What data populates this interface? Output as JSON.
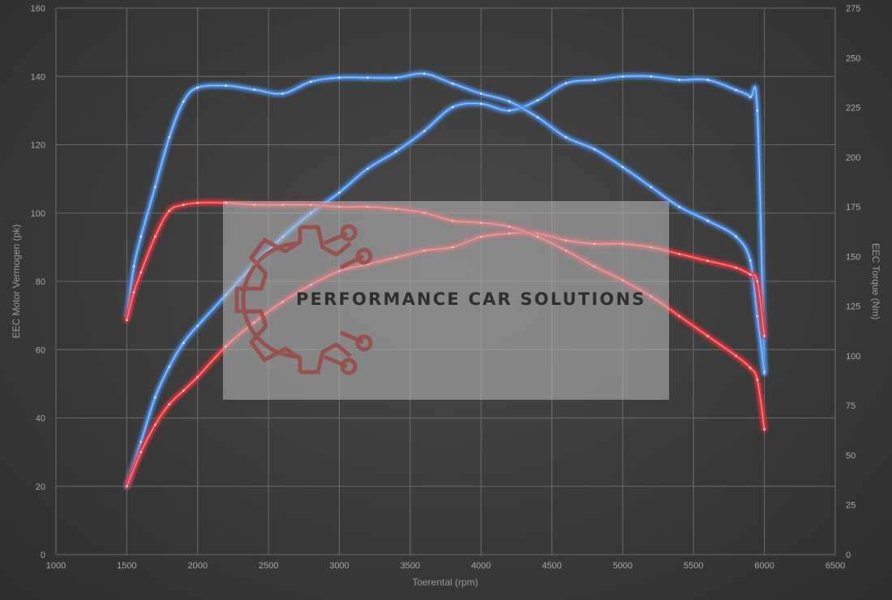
{
  "chart_data": {
    "type": "line",
    "xlabel": "Toerental (rpm)",
    "ylabel_left": "EEC Motor Vermogen (pk)",
    "ylabel_right": "EEC Torque (Nm)",
    "xlim": [
      1000,
      6500
    ],
    "ylim_left": [
      0,
      160
    ],
    "ylim_right": [
      0,
      275
    ],
    "x_ticks": [
      1000,
      1500,
      2000,
      2500,
      3000,
      3500,
      4000,
      4500,
      5000,
      5500,
      6000,
      6500
    ],
    "y_left_ticks": [
      0,
      20,
      40,
      60,
      80,
      100,
      120,
      140,
      160
    ],
    "y_right_ticks": [
      0,
      25,
      50,
      75,
      100,
      125,
      150,
      175,
      200,
      225,
      250,
      275
    ],
    "grid": true,
    "legend": "none",
    "colors": {
      "tuned": "#4a8fe8",
      "stock": "#e8343a"
    },
    "series": [
      {
        "color_key": "tuned",
        "axis": "left",
        "x": [
          1500,
          1600,
          1700,
          1800,
          1900,
          2000,
          2200,
          2400,
          2600,
          2800,
          3000,
          3200,
          3400,
          3600,
          3800,
          4000,
          4200,
          4400,
          4600,
          4800,
          5000,
          5200,
          5400,
          5600,
          5800,
          5900,
          5950,
          6000
        ],
        "values": [
          20,
          33,
          46,
          55,
          62,
          67,
          76,
          85,
          93,
          100,
          106,
          113,
          118,
          124,
          131,
          132,
          130,
          133,
          138,
          139,
          140,
          140,
          139,
          139,
          136,
          134,
          130,
          53
        ]
      },
      {
        "color_key": "tuned",
        "axis": "right",
        "x": [
          1500,
          1550,
          1600,
          1700,
          1800,
          1900,
          2000,
          2200,
          2400,
          2600,
          2800,
          3000,
          3200,
          3400,
          3600,
          3800,
          4000,
          4200,
          4400,
          4600,
          4800,
          5000,
          5200,
          5400,
          5600,
          5800,
          5900,
          5950,
          6000
        ],
        "values": [
          120,
          145,
          160,
          185,
          210,
          228,
          235,
          236,
          234,
          232,
          238,
          240,
          240,
          240,
          242,
          237,
          232,
          228,
          220,
          210,
          204,
          195,
          185,
          175,
          168,
          160,
          148,
          120,
          92
        ]
      },
      {
        "color_key": "stock",
        "axis": "left",
        "x": [
          1500,
          1600,
          1700,
          1800,
          1900,
          2000,
          2200,
          2400,
          2600,
          2800,
          3000,
          3200,
          3400,
          3600,
          3800,
          4000,
          4200,
          4400,
          4600,
          4800,
          5000,
          5200,
          5400,
          5600,
          5800,
          5900,
          5950,
          6000
        ],
        "values": [
          20,
          30,
          38,
          44,
          48,
          52,
          61,
          68,
          74,
          79,
          83,
          85,
          87,
          89,
          90,
          93,
          94,
          94,
          92,
          91,
          91,
          90,
          88,
          86,
          84,
          82,
          80,
          64
        ]
      },
      {
        "color_key": "stock",
        "axis": "right",
        "x": [
          1500,
          1550,
          1600,
          1700,
          1800,
          1900,
          2000,
          2200,
          2400,
          2600,
          2800,
          3000,
          3200,
          3400,
          3600,
          3800,
          4000,
          4200,
          4400,
          4600,
          4800,
          5000,
          5200,
          5400,
          5600,
          5800,
          5900,
          5950,
          6000
        ],
        "values": [
          118,
          132,
          142,
          160,
          173,
          176,
          177,
          177,
          176,
          176,
          176,
          175,
          175,
          174,
          172,
          168,
          167,
          165,
          160,
          153,
          145,
          138,
          130,
          120,
          110,
          100,
          94,
          88,
          63
        ]
      }
    ]
  },
  "watermark": {
    "text": "PERFORMANCE CAR SOLUTIONS"
  }
}
